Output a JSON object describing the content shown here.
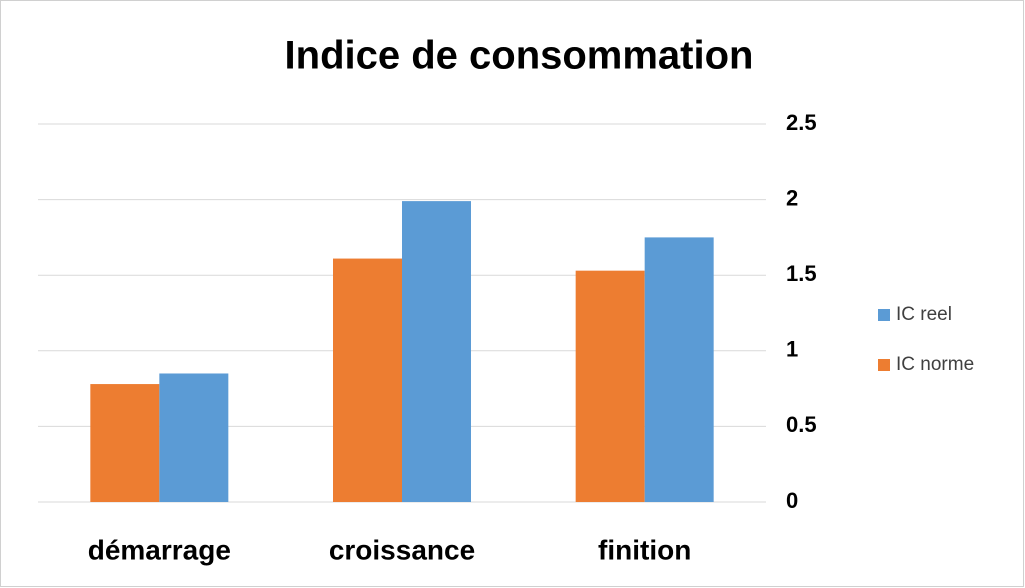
{
  "chart_data": {
    "type": "bar",
    "title": "Indice de consommation",
    "categories": [
      "démarrage",
      "croissance",
      "finition"
    ],
    "series": [
      {
        "name": "IC norme",
        "color": "#ed7d31",
        "values": [
          0.78,
          1.61,
          1.53
        ]
      },
      {
        "name": "IC reel",
        "color": "#5b9bd5",
        "values": [
          0.85,
          1.99,
          1.75
        ]
      }
    ],
    "ylim": [
      0,
      2.5
    ],
    "yticks": [
      0,
      0.5,
      1,
      1.5,
      2,
      2.5
    ],
    "grid": true,
    "legend": "right"
  }
}
